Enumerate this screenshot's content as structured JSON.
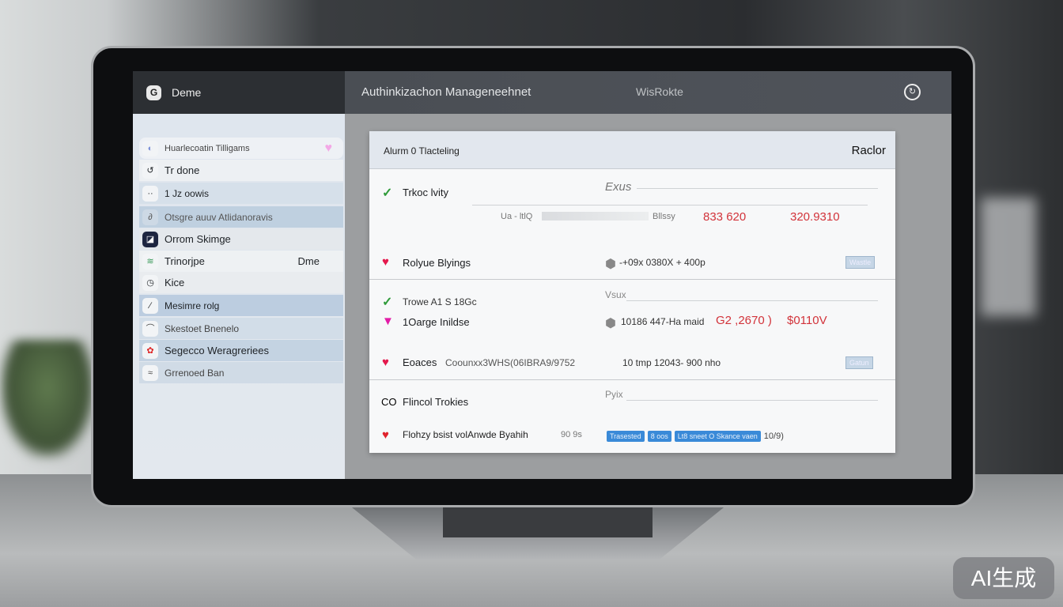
{
  "header": {
    "brand": "Deme",
    "logo": "G",
    "title": "Authinkizachon Manageneehnet",
    "subtitle": "WisRokte",
    "icon": "user-circle-icon"
  },
  "sidebar": {
    "items": [
      {
        "label": "Huarlecoatin Tilligams",
        "icon": "circle-icon"
      },
      {
        "label": "Tr done",
        "icon": "refresh-icon"
      },
      {
        "label": "1 Jz oowis",
        "icon": "dots-icon"
      },
      {
        "label": "Otsgre auuv Atlidanoravis",
        "icon": "link-icon"
      },
      {
        "label": "Orrom Skimge",
        "icon": "square-icon"
      },
      {
        "label": "Trinorjpe",
        "extra": "Dme",
        "icon": "stripes-icon"
      },
      {
        "label": "Kice",
        "icon": "clock-icon"
      },
      {
        "label": "Mesimre rolg",
        "icon": "pen-icon"
      },
      {
        "label": "Skestoet Bnenelo",
        "icon": "bell-icon"
      },
      {
        "label": "Segecco Weragreriees",
        "icon": "red-logo-icon"
      },
      {
        "label": "Grrenoed Ban",
        "icon": "wave-icon"
      }
    ]
  },
  "card": {
    "title": "Alurm 0 Tlacteling",
    "action": "Raclor",
    "rows": [
      {
        "label": "Trkoc lvity",
        "status": "check",
        "field": "Exus",
        "input_prefix": "Ua - ltlQ",
        "input_suffix": "Bllssy",
        "value1": "833 620",
        "value2": "320.9310"
      },
      {
        "label": "Rolyue Blyings",
        "status": "heart",
        "detail": "-+09x 0380X + 400p",
        "pill": "Wastle"
      },
      {
        "label": "Trowe A1 S 18Gc",
        "status": "check",
        "field": "Vsux"
      },
      {
        "label": "1Oarge Inildse",
        "status": "heart",
        "detail": "10186 447-Ha maid",
        "value1": "G2 ,2670 )",
        "value2": "$0110V"
      },
      {
        "label": "Eoaces",
        "status": "heart",
        "code": "Coounxx3WHS(06IBRA9/9752",
        "detail": "10 tmp 12043- 900 nho",
        "pill": "Gatun"
      },
      {
        "label": "Flincol Trokies",
        "status": "CO",
        "field": "Pyix"
      },
      {
        "label": "Flohzy bsist volAnwde Byahih",
        "status": "heart",
        "meta": "90 9s",
        "badges": [
          "Trasested",
          "8 oos",
          "Lt8 sneet O Skance vaen"
        ],
        "count": "10/9)"
      }
    ]
  },
  "watermark": "AI生成",
  "colors": {
    "header": "#2c2f33",
    "accent": "#3a8ad8",
    "danger": "#d2333a",
    "success": "#2f9b3a"
  }
}
